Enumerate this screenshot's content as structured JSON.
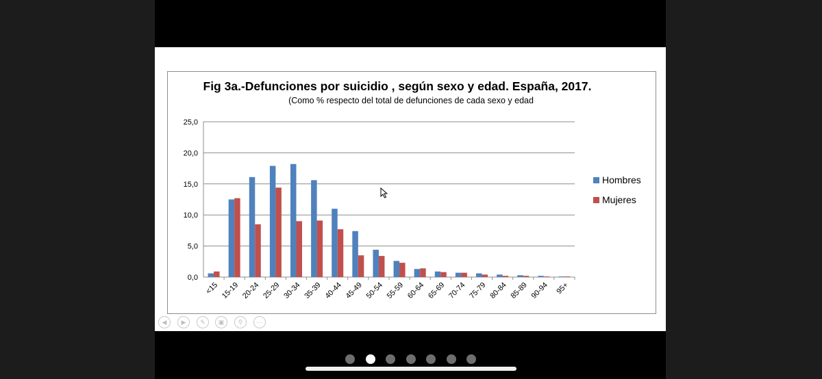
{
  "chart_data": {
    "type": "bar",
    "title": "Fig 3a.-Defunciones por suicidio , según sexo y edad. España, 2017.",
    "subtitle": "(Como % respecto del total de defunciones de cada sexo y edad",
    "categories": [
      "<15",
      "15-19",
      "20-24",
      "25-29",
      "30-34",
      "35-39",
      "40-44",
      "45-49",
      "50-54",
      "55-59",
      "60-64",
      "65-69",
      "70-74",
      "75-79",
      "80-84",
      "85-89",
      "90-94",
      "95+"
    ],
    "series": [
      {
        "name": "Hombres",
        "color": "#4f81bd",
        "values": [
          0.6,
          12.5,
          16.1,
          17.9,
          18.2,
          15.6,
          11.0,
          7.4,
          4.4,
          2.6,
          1.3,
          0.9,
          0.7,
          0.6,
          0.4,
          0.3,
          0.2,
          0.1
        ]
      },
      {
        "name": "Mujeres",
        "color": "#c0504d",
        "values": [
          0.9,
          12.7,
          8.5,
          14.4,
          9.0,
          9.1,
          7.7,
          3.5,
          3.4,
          2.3,
          1.4,
          0.8,
          0.7,
          0.4,
          0.2,
          0.2,
          0.1,
          0.1
        ]
      }
    ],
    "ylim": [
      0,
      25
    ],
    "yticks": [
      "0,0",
      "5,0",
      "10,0",
      "15,0",
      "20,0",
      "25,0"
    ],
    "grid": true,
    "legend": "right"
  },
  "icons": {
    "controls": [
      "prev-icon",
      "next-icon",
      "pen-icon",
      "slides-icon",
      "zoom-icon",
      "more-icon"
    ],
    "cursor": "mouse-pointer-icon"
  },
  "pagination": {
    "count": 7,
    "active": 2
  }
}
